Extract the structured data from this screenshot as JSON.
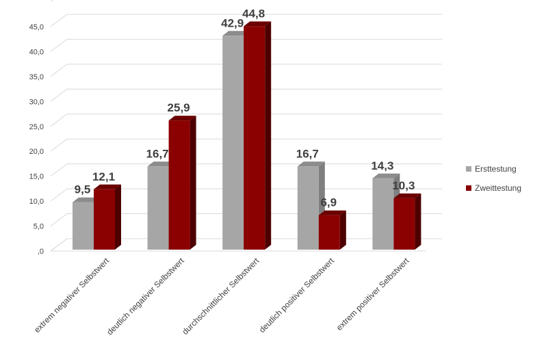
{
  "chart_data": {
    "type": "bar",
    "style": "3d-clustered-column",
    "categories": [
      "extrem negativer Selbstwert",
      "deutlich negativer Selbstwert",
      "durchschnittlicher Selbstwert",
      "deutlich positiver Selbstwert",
      "extrem positiver Selbstwert"
    ],
    "series": [
      {
        "name": "Ersttestung",
        "values": [
          9.5,
          16.7,
          42.9,
          16.7,
          14.3
        ],
        "color": "#a6a6a6",
        "side_color": "#7f7f7f",
        "top_color": "#8c8c8c"
      },
      {
        "name": "Zweittestung",
        "values": [
          12.1,
          25.9,
          44.8,
          6.9,
          10.3
        ],
        "color": "#8b0000",
        "side_color": "#4d0000",
        "top_color": "#6b0000"
      }
    ],
    "data_labels": [
      [
        "9,5",
        "16,7",
        "42,9",
        "16,7",
        "14,3"
      ],
      [
        "12,1",
        "25,9",
        "44,8",
        "6,9",
        "10,3"
      ]
    ],
    "y_ticks": [
      ",0",
      "5,0",
      "10,0",
      "15,0",
      "20,0",
      "25,0",
      "30,0",
      "35,0",
      "40,0",
      "45,0"
    ],
    "ylim": [
      0,
      50
    ],
    "grid": true,
    "legend_position": "right"
  }
}
